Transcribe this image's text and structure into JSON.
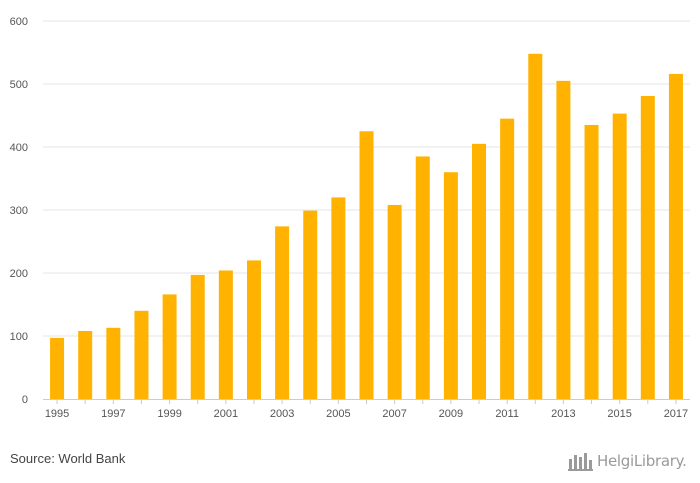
{
  "chart_data": {
    "type": "bar",
    "title": "",
    "xlabel": "",
    "ylabel": "",
    "ylim": [
      0,
      600
    ],
    "yticks": [
      0,
      100,
      200,
      300,
      400,
      500,
      600
    ],
    "grid": true,
    "bar_color": "#FFB300",
    "categories": [
      "1995",
      "1996",
      "1997",
      "1998",
      "1999",
      "2000",
      "2001",
      "2002",
      "2003",
      "2004",
      "2005",
      "2006",
      "2007",
      "2008",
      "2009",
      "2010",
      "2011",
      "2012",
      "2013",
      "2014",
      "2015",
      "2016",
      "2017"
    ],
    "xtick_labels": [
      "1995",
      "",
      "1997",
      "",
      "1999",
      "",
      "2001",
      "",
      "2003",
      "",
      "2005",
      "",
      "2007",
      "",
      "2009",
      "",
      "2011",
      "",
      "2013",
      "",
      "2015",
      "",
      "2017"
    ],
    "values": [
      97,
      108,
      113,
      140,
      166,
      197,
      204,
      220,
      274,
      299,
      320,
      425,
      308,
      385,
      360,
      405,
      445,
      548,
      505,
      435,
      453,
      481,
      516
    ]
  },
  "footer": {
    "source": "Source: World Bank",
    "logo_text": "HelgiLibrary.",
    "logo_icon": "helgi-library-logo-icon"
  }
}
